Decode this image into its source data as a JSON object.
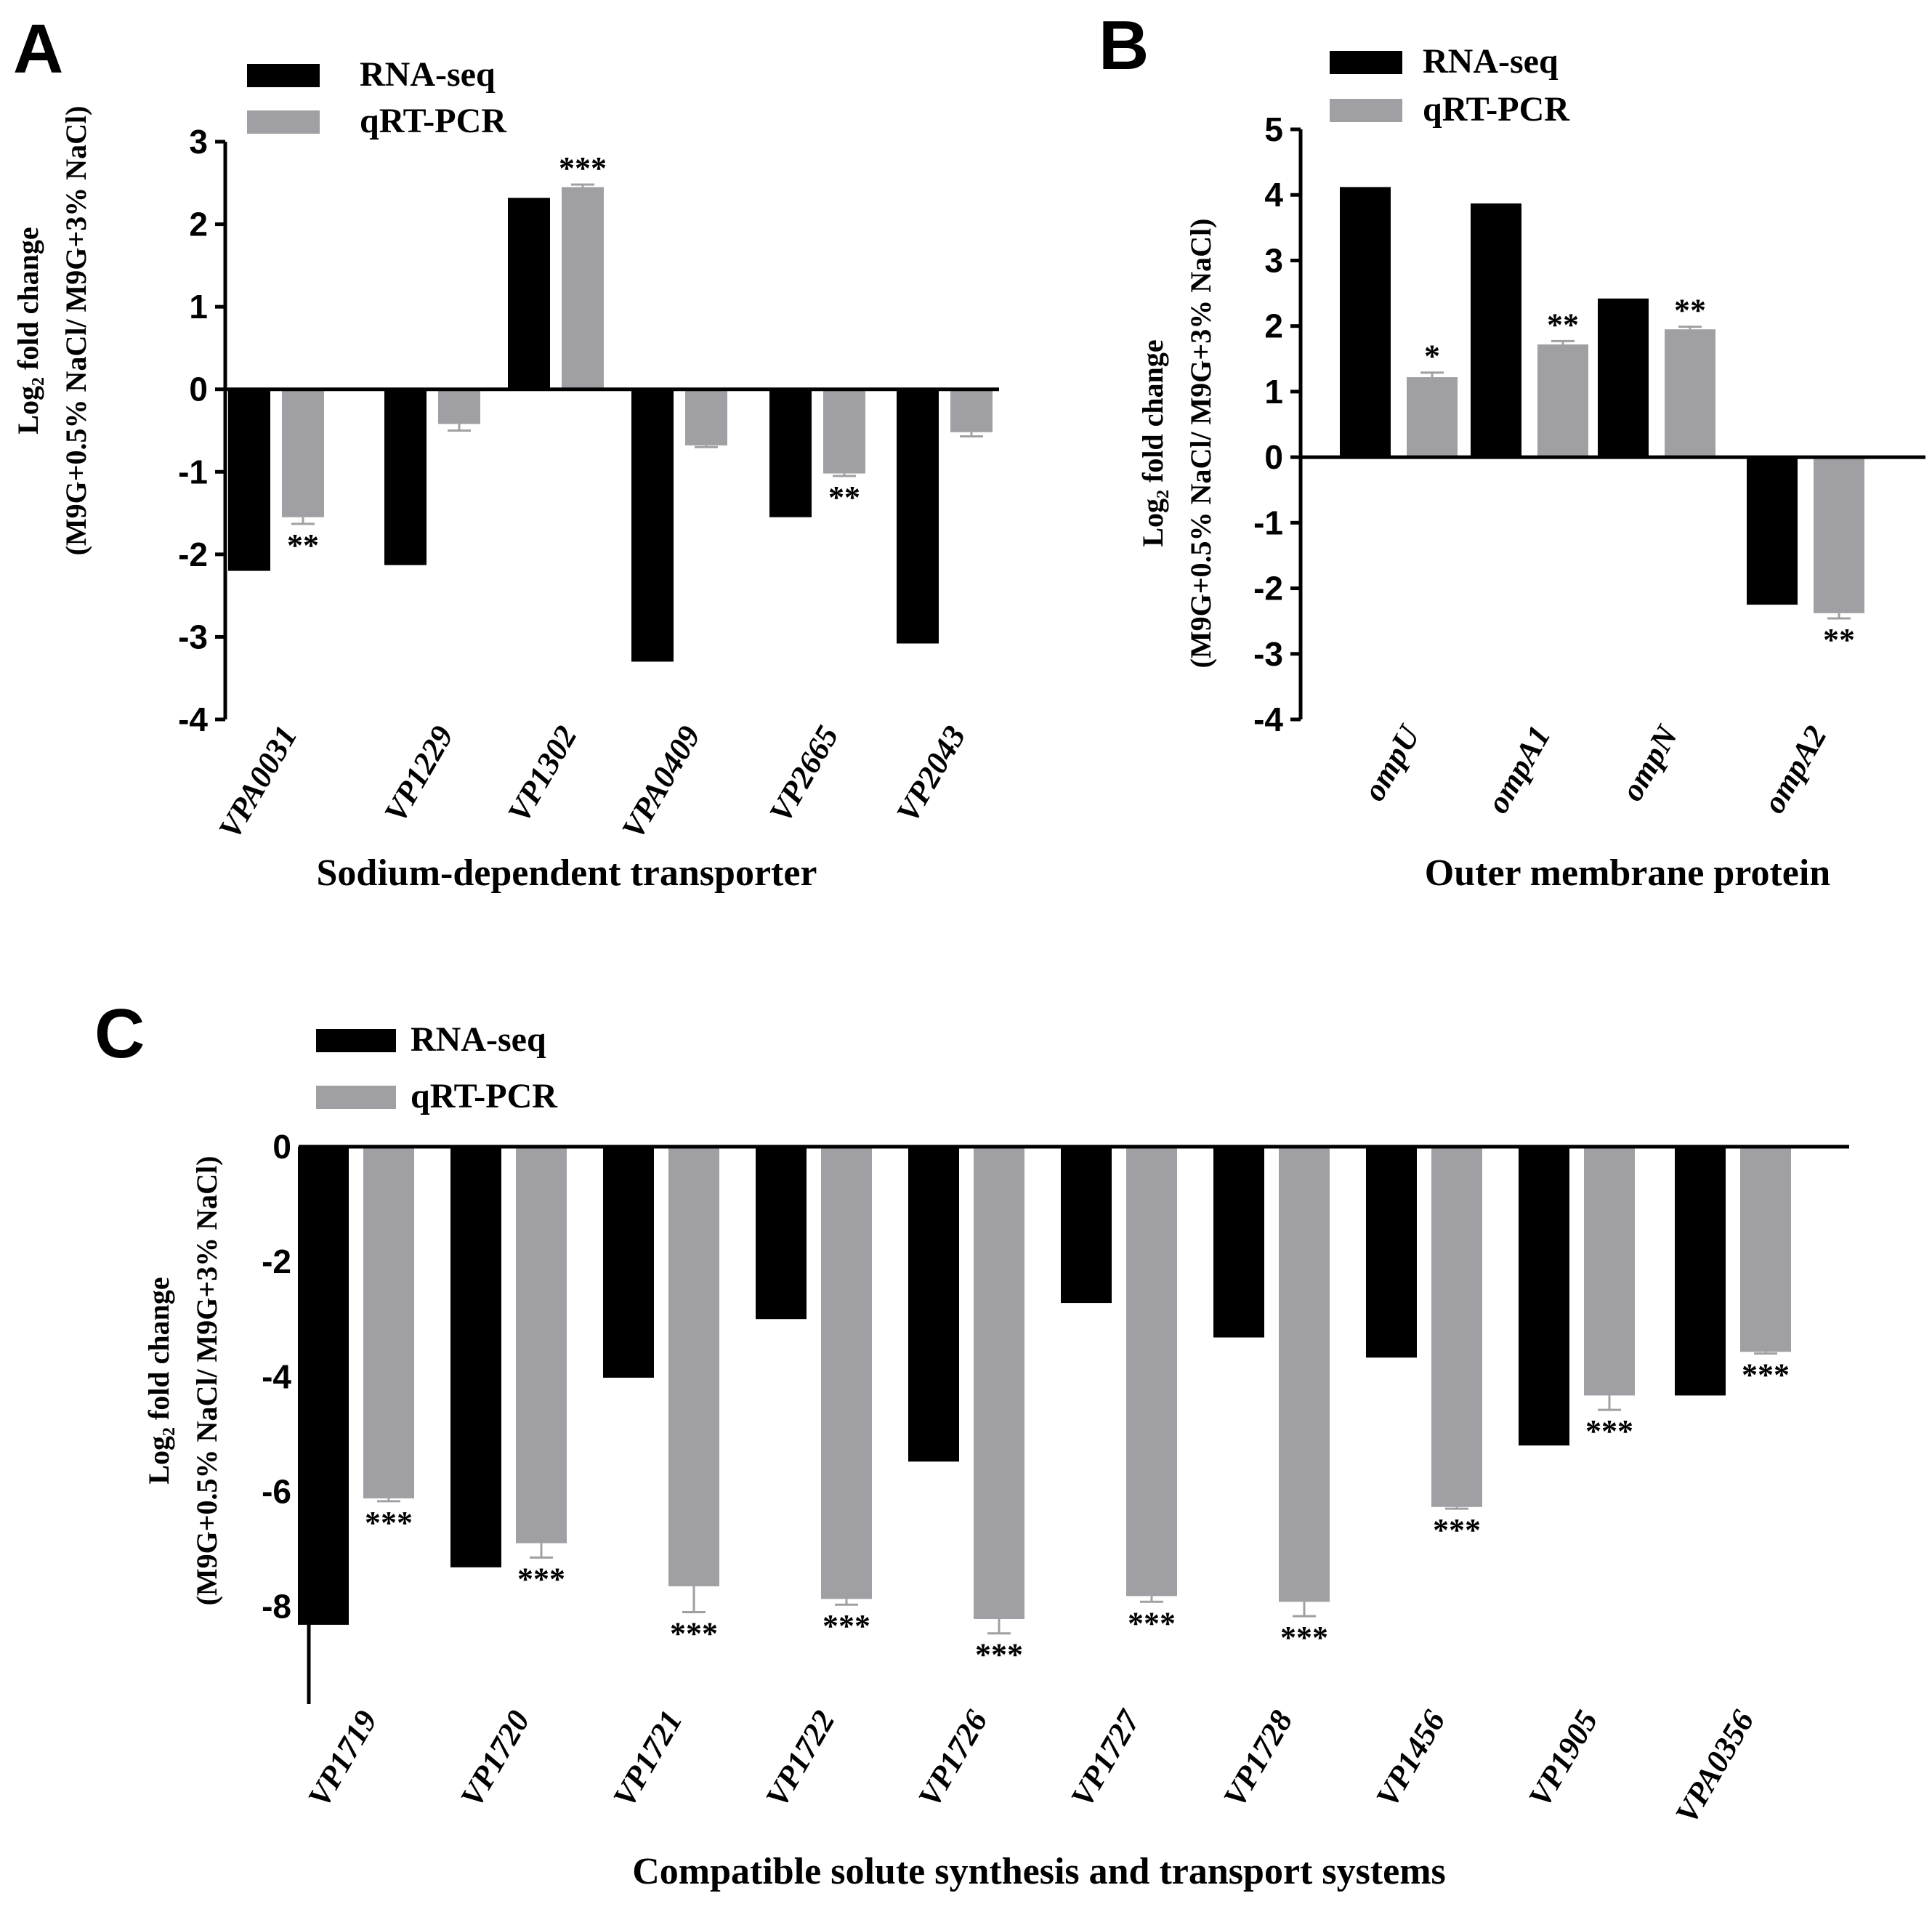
{
  "colors": {
    "rna_seq": "#000000",
    "qrt_pcr": "#a0a0a4",
    "errorbar": "#a0a0a4"
  },
  "chart_data": [
    {
      "type": "bar",
      "panel": "A",
      "legend": [
        "RNA-seq",
        "qRT-PCR"
      ],
      "ylabel_line1": "Log₂ fold change",
      "ylabel_line2": "(M9G+0.5% NaCl/ M9G+3% NaCl)",
      "xlabel": "Sodium-dependent transporter",
      "ylim": [
        -4,
        3
      ],
      "yticks": [
        3,
        2,
        1,
        0,
        -1,
        -2,
        -3,
        -4
      ],
      "categories": [
        "VPA0031",
        "VP1229",
        "VP1302",
        "VPA0409",
        "VP2665",
        "VP2043"
      ],
      "series": [
        {
          "name": "RNA-seq",
          "values": [
            -2.2,
            -2.13,
            2.32,
            -3.3,
            -1.55,
            -3.08
          ]
        },
        {
          "name": "qRT-PCR",
          "values": [
            -1.55,
            -0.42,
            2.45,
            -0.68,
            -1.02,
            -0.52
          ],
          "errors": [
            0.08,
            0.08,
            0.03,
            0.02,
            0.03,
            0.05
          ]
        }
      ],
      "significance": [
        "**",
        "",
        "***",
        "",
        "**",
        ""
      ]
    },
    {
      "type": "bar",
      "panel": "B",
      "legend": [
        "RNA-seq",
        "qRT-PCR"
      ],
      "ylabel_line1": "Log₂ fold change",
      "ylabel_line2": "(M9G+0.5% NaCl/ M9G+3% NaCl)",
      "xlabel": "Outer membrane protein",
      "ylim": [
        -4,
        5
      ],
      "yticks": [
        5,
        4,
        3,
        2,
        1,
        0,
        -1,
        -2,
        -3,
        -4
      ],
      "categories": [
        "ompU",
        "ompA1",
        "ompN",
        "ompA2"
      ],
      "series": [
        {
          "name": "RNA-seq",
          "values": [
            4.12,
            3.87,
            2.42,
            -2.25
          ]
        },
        {
          "name": "qRT-PCR",
          "values": [
            1.22,
            1.72,
            1.95,
            -2.38
          ],
          "errors": [
            0.07,
            0.05,
            0.04,
            0.08
          ]
        }
      ],
      "significance": [
        "*",
        "**",
        "**",
        "**"
      ]
    },
    {
      "type": "bar",
      "panel": "C",
      "legend": [
        "RNA-seq",
        "qRT-PCR"
      ],
      "ylabel_line1": "Log₂ fold change",
      "ylabel_line2": "(M9G+0.5% NaCl/ M9G+3% NaCl)",
      "xlabel": "Compatible  solute synthesis and transport  systems",
      "ylim": [
        -9.7,
        0
      ],
      "yticks": [
        0,
        -2,
        -4,
        -6,
        -8
      ],
      "categories": [
        "VP1719",
        "VP1720",
        "VP1721",
        "VP1722",
        "VP1726",
        "VP1727",
        "VP1728",
        "VP1456",
        "VP1905",
        "VPA0356"
      ],
      "series": [
        {
          "name": "RNA-seq",
          "values": [
            -8.32,
            -7.32,
            -4.02,
            -3.0,
            -5.48,
            -2.72,
            -3.32,
            -3.67,
            -5.2,
            -4.33
          ]
        },
        {
          "name": "qRT-PCR",
          "values": [
            -6.12,
            -6.9,
            -7.65,
            -7.87,
            -8.22,
            -7.82,
            -7.92,
            -6.27,
            -4.33,
            -3.57
          ],
          "errors": [
            0.05,
            0.25,
            0.45,
            0.1,
            0.25,
            0.1,
            0.25,
            0.03,
            0.25,
            0.03
          ]
        }
      ],
      "significance": [
        "***",
        "***",
        "***",
        "***",
        "***",
        "***",
        "***",
        "***",
        "***",
        "***"
      ]
    }
  ]
}
